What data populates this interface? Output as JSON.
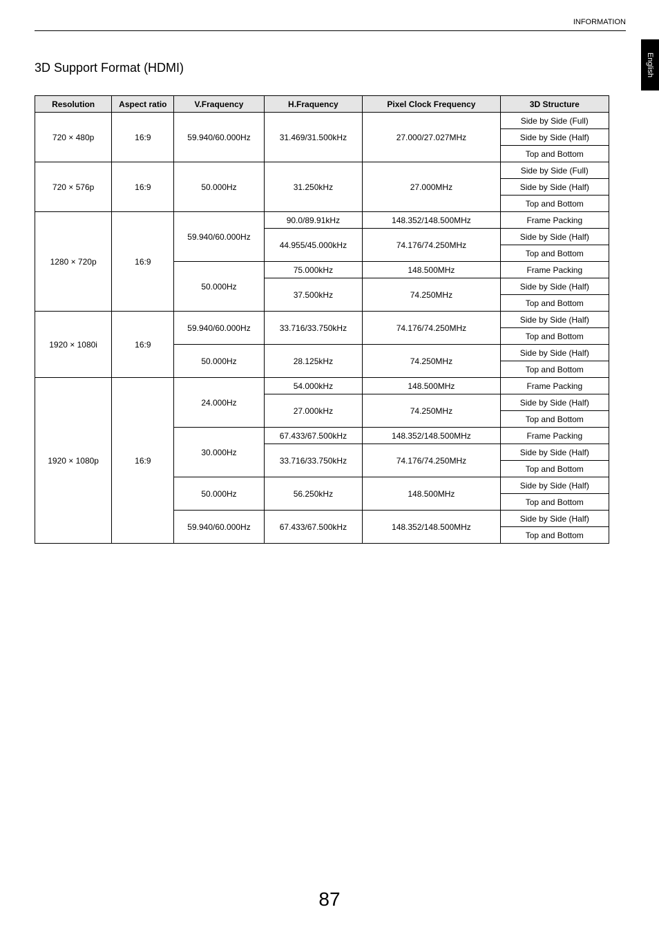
{
  "header": {
    "label": "INFORMATION"
  },
  "side_tab": {
    "label": "English"
  },
  "section": {
    "title": "3D Support Format (HDMI)"
  },
  "table": {
    "headers": {
      "resolution": "Resolution",
      "aspect": "Aspect ratio",
      "vfreq": "V.Fraquency",
      "hfreq": "H.Fraquency",
      "pixclock": "Pixel Clock Frequency",
      "struct3d": "3D Structure"
    },
    "columns": {
      "resolution_width": 106,
      "aspect_width": 86,
      "vfreq_width": 124,
      "hfreq_width": 136,
      "pixclock_width": 190,
      "struct3d_width": 150
    },
    "colors": {
      "header_bg": "#e5e5e5",
      "border_color": "#000000",
      "text_color": "#000000",
      "body_bg": "#ffffff"
    },
    "fontsize": {
      "header": 12,
      "cell": 12
    },
    "rows": [
      {
        "res": "720 × 480p",
        "asp": "16:9",
        "v": "59.940/60.000Hz",
        "h": "31.469/31.500kHz",
        "p": "27.000/27.027MHz",
        "s": "Side by Side (Full)"
      },
      {
        "res": "",
        "asp": "",
        "v": "",
        "h": "",
        "p": "",
        "s": "Side by Side (Half)"
      },
      {
        "res": "",
        "asp": "",
        "v": "",
        "h": "",
        "p": "",
        "s": "Top and Bottom"
      },
      {
        "res": "720 × 576p",
        "asp": "16:9",
        "v": "50.000Hz",
        "h": "31.250kHz",
        "p": "27.000MHz",
        "s": "Side by Side (Full)"
      },
      {
        "res": "",
        "asp": "",
        "v": "",
        "h": "",
        "p": "",
        "s": "Side by Side (Half)"
      },
      {
        "res": "",
        "asp": "",
        "v": "",
        "h": "",
        "p": "",
        "s": "Top and Bottom"
      },
      {
        "res": "1280 × 720p",
        "asp": "16:9",
        "v": "59.940/60.000Hz",
        "h": "90.0/89.91kHz",
        "p": "148.352/148.500MHz",
        "s": "Frame Packing"
      },
      {
        "res": "",
        "asp": "",
        "v": "",
        "h": "44.955/45.000kHz",
        "p": "74.176/74.250MHz",
        "s": "Side by Side (Half)"
      },
      {
        "res": "",
        "asp": "",
        "v": "",
        "h": "",
        "p": "",
        "s": "Top and Bottom"
      },
      {
        "res": "",
        "asp": "",
        "v": "50.000Hz",
        "h": "75.000kHz",
        "p": "148.500MHz",
        "s": "Frame Packing"
      },
      {
        "res": "",
        "asp": "",
        "v": "",
        "h": "37.500kHz",
        "p": "74.250MHz",
        "s": "Side by Side (Half)"
      },
      {
        "res": "",
        "asp": "",
        "v": "",
        "h": "",
        "p": "",
        "s": "Top and Bottom"
      },
      {
        "res": "1920 × 1080i",
        "asp": "16:9",
        "v": "59.940/60.000Hz",
        "h": "33.716/33.750kHz",
        "p": "74.176/74.250MHz",
        "s": "Side by Side (Half)"
      },
      {
        "res": "",
        "asp": "",
        "v": "",
        "h": "",
        "p": "",
        "s": "Top and Bottom"
      },
      {
        "res": "",
        "asp": "",
        "v": "50.000Hz",
        "h": "28.125kHz",
        "p": "74.250MHz",
        "s": "Side by Side (Half)"
      },
      {
        "res": "",
        "asp": "",
        "v": "",
        "h": "",
        "p": "",
        "s": "Top and Bottom"
      },
      {
        "res": "1920 × 1080p",
        "asp": "16:9",
        "v": "24.000Hz",
        "h": "54.000kHz",
        "p": "148.500MHz",
        "s": "Frame Packing"
      },
      {
        "res": "",
        "asp": "",
        "v": "",
        "h": "27.000kHz",
        "p": "74.250MHz",
        "s": "Side by Side (Half)"
      },
      {
        "res": "",
        "asp": "",
        "v": "",
        "h": "",
        "p": "",
        "s": "Top and Bottom"
      },
      {
        "res": "",
        "asp": "",
        "v": "30.000Hz",
        "h": "67.433/67.500kHz",
        "p": "148.352/148.500MHz",
        "s": "Frame Packing"
      },
      {
        "res": "",
        "asp": "",
        "v": "",
        "h": "33.716/33.750kHz",
        "p": "74.176/74.250MHz",
        "s": "Side by Side (Half)"
      },
      {
        "res": "",
        "asp": "",
        "v": "",
        "h": "",
        "p": "",
        "s": "Top and Bottom"
      },
      {
        "res": "",
        "asp": "",
        "v": "50.000Hz",
        "h": "56.250kHz",
        "p": "148.500MHz",
        "s": "Side by Side (Half)"
      },
      {
        "res": "",
        "asp": "",
        "v": "",
        "h": "",
        "p": "",
        "s": "Top and Bottom"
      },
      {
        "res": "",
        "asp": "",
        "v": "59.940/60.000Hz",
        "h": "67.433/67.500kHz",
        "p": "148.352/148.500MHz",
        "s": "Side by Side (Half)"
      },
      {
        "res": "",
        "asp": "",
        "v": "",
        "h": "",
        "p": "",
        "s": "Top and Bottom"
      }
    ]
  },
  "page_number": "87"
}
